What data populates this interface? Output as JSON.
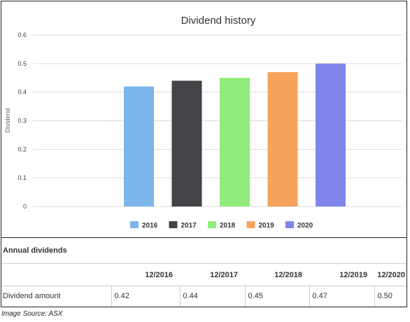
{
  "chart_data": {
    "type": "bar",
    "title": "Dividend history",
    "ylabel": "Dividend",
    "xlabel": "",
    "ylim": [
      0,
      0.6
    ],
    "yticks": [
      "0",
      "0.1",
      "0.2",
      "0.3",
      "0.4",
      "0.5",
      "0.6"
    ],
    "grid": true,
    "legend_position": "bottom",
    "series": [
      {
        "name": "2016",
        "value": 0.42,
        "color": "#7cb5ec"
      },
      {
        "name": "2017",
        "value": 0.44,
        "color": "#434348"
      },
      {
        "name": "2018",
        "value": 0.45,
        "color": "#90ed7d"
      },
      {
        "name": "2019",
        "value": 0.47,
        "color": "#f7a35c"
      },
      {
        "name": "2020",
        "value": 0.5,
        "color": "#8085e9"
      }
    ]
  },
  "table": {
    "title": "Annual dividends",
    "headers": [
      "",
      "12/2016",
      "12/2017",
      "12/2018",
      "12/2019",
      "12/2020"
    ],
    "row_label": "Dividend amount",
    "values": [
      "0.42",
      "0.44",
      "0.45",
      "0.47",
      "0.50"
    ]
  },
  "source": "Image Source: ASX"
}
